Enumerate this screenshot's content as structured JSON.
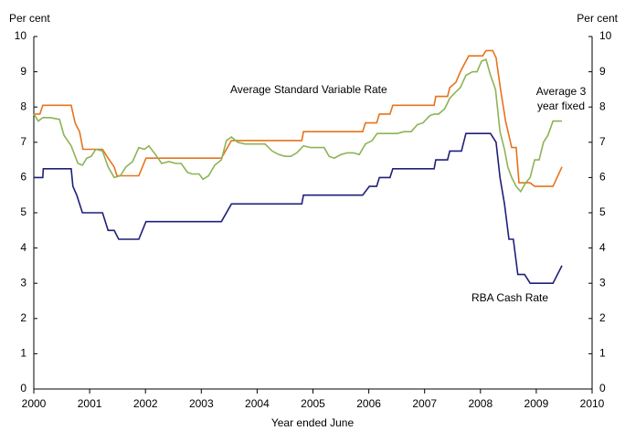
{
  "chart_data": {
    "type": "line",
    "ylabel": "Per cent",
    "y2label": "Per cent",
    "xlabel": "Year ended June",
    "xlim": [
      2000,
      2010
    ],
    "xticks": [
      2000,
      2001,
      2002,
      2003,
      2004,
      2005,
      2006,
      2007,
      2008,
      2009,
      2010
    ],
    "ylim": [
      0,
      10
    ],
    "yticks": [
      0,
      1,
      2,
      3,
      4,
      5,
      6,
      7,
      8,
      9,
      10
    ],
    "y2lim": [
      0,
      10
    ],
    "y2ticks": [
      0,
      1,
      2,
      3,
      4,
      5,
      6,
      7,
      8,
      9,
      10
    ],
    "series": [
      {
        "name": "Average Standard Variable Rate",
        "color": "#e8731a",
        "x": [
          2000,
          2000.11,
          2000.16,
          2000.67,
          2000.74,
          2000.82,
          2000.88,
          2001.23,
          2001.33,
          2001.44,
          2001.49,
          2001.88,
          2002.01,
          2003.36,
          2003.54,
          2004.8,
          2004.83,
          2005.89,
          2005.94,
          2006.14,
          2006.19,
          2006.38,
          2006.43,
          2007.17,
          2007.2,
          2007.41,
          2007.45,
          2007.56,
          2007.64,
          2007.74,
          2007.79,
          2008.04,
          2008.1,
          2008.22,
          2008.28,
          2008.36,
          2008.45,
          2008.56,
          2008.64,
          2008.69,
          2008.89,
          2008.97,
          2009.3,
          2009.46
        ],
        "values": [
          7.8,
          7.8,
          8.05,
          8.05,
          7.55,
          7.3,
          6.8,
          6.8,
          6.55,
          6.3,
          6.05,
          6.05,
          6.55,
          6.55,
          7.05,
          7.05,
          7.3,
          7.3,
          7.55,
          7.55,
          7.8,
          7.8,
          8.05,
          8.05,
          8.3,
          8.3,
          8.55,
          8.7,
          9.0,
          9.3,
          9.45,
          9.45,
          9.6,
          9.6,
          9.4,
          8.5,
          7.6,
          6.85,
          6.85,
          5.85,
          5.85,
          5.75,
          5.75,
          6.3
        ]
      },
      {
        "name": "Average 3 year fixed",
        "color": "#8db356",
        "x": [
          2000,
          2000.08,
          2000.16,
          2000.29,
          2000.46,
          2000.54,
          2000.67,
          2000.79,
          2000.87,
          2000.95,
          2001.03,
          2001.11,
          2001.23,
          2001.33,
          2001.44,
          2001.55,
          2001.65,
          2001.77,
          2001.88,
          2001.98,
          2002.06,
          2002.18,
          2002.29,
          2002.42,
          2002.54,
          2002.64,
          2002.75,
          2002.83,
          2002.96,
          2003.03,
          2003.13,
          2003.24,
          2003.36,
          2003.45,
          2003.54,
          2003.65,
          2003.78,
          2003.9,
          2004.01,
          2004.14,
          2004.27,
          2004.39,
          2004.5,
          2004.6,
          2004.71,
          2004.83,
          2004.96,
          2005.09,
          2005.2,
          2005.29,
          2005.38,
          2005.5,
          2005.61,
          2005.73,
          2005.83,
          2005.94,
          2006.06,
          2006.15,
          2006.27,
          2006.38,
          2006.51,
          2006.63,
          2006.76,
          2006.87,
          2006.97,
          2007.09,
          2007.17,
          2007.25,
          2007.36,
          2007.45,
          2007.54,
          2007.64,
          2007.74,
          2007.86,
          2007.94,
          2008.02,
          2008.1,
          2008.18,
          2008.27,
          2008.35,
          2008.43,
          2008.49,
          2008.56,
          2008.64,
          2008.72,
          2008.81,
          2008.89,
          2008.97,
          2009.05,
          2009.13,
          2009.21,
          2009.3,
          2009.38,
          2009.46
        ],
        "values": [
          7.8,
          7.6,
          7.7,
          7.7,
          7.65,
          7.2,
          6.9,
          6.4,
          6.35,
          6.55,
          6.6,
          6.8,
          6.75,
          6.3,
          6.0,
          6.05,
          6.3,
          6.45,
          6.85,
          6.8,
          6.9,
          6.65,
          6.4,
          6.45,
          6.4,
          6.4,
          6.15,
          6.1,
          6.1,
          5.95,
          6.05,
          6.35,
          6.5,
          7.05,
          7.15,
          7.0,
          6.95,
          6.95,
          6.95,
          6.95,
          6.75,
          6.65,
          6.6,
          6.6,
          6.7,
          6.9,
          6.85,
          6.85,
          6.85,
          6.6,
          6.55,
          6.65,
          6.7,
          6.7,
          6.65,
          6.95,
          7.05,
          7.25,
          7.25,
          7.25,
          7.25,
          7.3,
          7.3,
          7.5,
          7.55,
          7.75,
          7.8,
          7.8,
          7.95,
          8.25,
          8.4,
          8.55,
          8.9,
          9.0,
          9.0,
          9.3,
          9.35,
          8.9,
          8.5,
          7.3,
          6.8,
          6.3,
          6.0,
          5.75,
          5.6,
          5.85,
          6.0,
          6.5,
          6.5,
          7.0,
          7.2,
          7.6,
          7.6,
          7.6
        ]
      },
      {
        "name": "RBA Cash Rate",
        "color": "#1f1f7a",
        "x": [
          2000,
          2000.16,
          2000.17,
          2000.67,
          2000.7,
          2000.77,
          2000.87,
          2001.23,
          2001.33,
          2001.44,
          2001.52,
          2001.88,
          2002.01,
          2003.36,
          2003.54,
          2004.8,
          2004.83,
          2005.89,
          2006.01,
          2006.14,
          2006.19,
          2006.38,
          2006.43,
          2007.17,
          2007.2,
          2007.41,
          2007.45,
          2007.66,
          2007.74,
          2008.18,
          2008.28,
          2008.35,
          2008.43,
          2008.51,
          2008.59,
          2008.67,
          2008.79,
          2008.89,
          2009.3,
          2009.46
        ],
        "values": [
          6.0,
          6.0,
          6.25,
          6.25,
          5.75,
          5.5,
          5.0,
          5.0,
          4.5,
          4.5,
          4.25,
          4.25,
          4.75,
          4.75,
          5.25,
          5.25,
          5.5,
          5.5,
          5.75,
          5.75,
          6.0,
          6.0,
          6.25,
          6.25,
          6.5,
          6.5,
          6.75,
          6.75,
          7.25,
          7.25,
          7.0,
          6.0,
          5.25,
          4.25,
          4.25,
          3.25,
          3.25,
          3.0,
          3.0,
          3.5
        ]
      }
    ]
  }
}
